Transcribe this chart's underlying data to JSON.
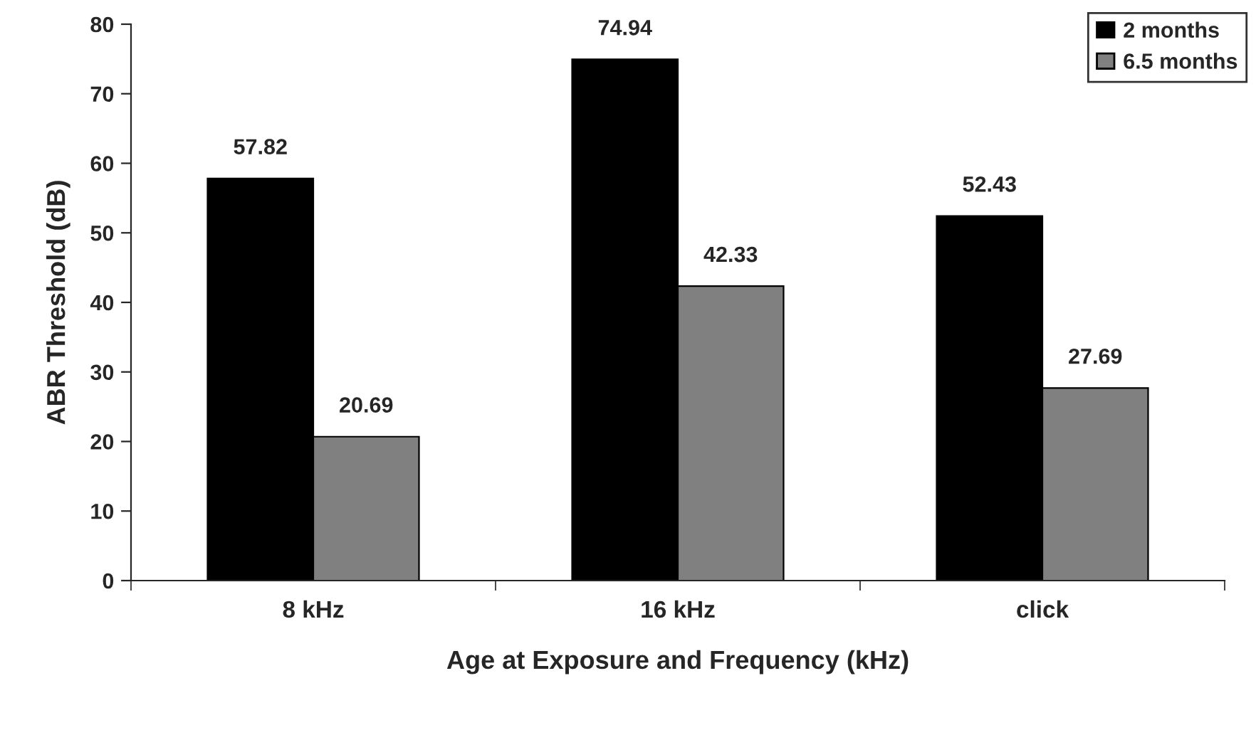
{
  "chart_data": {
    "type": "bar",
    "xlabel": "Age at Exposure and Frequency (kHz)",
    "ylabel": "ABR Threshold (dB)",
    "categories": [
      "8 kHz",
      "16 kHz",
      "click"
    ],
    "series": [
      {
        "name": "2 months",
        "color": "#000000",
        "values": [
          57.82,
          74.94,
          52.43
        ]
      },
      {
        "name": "6.5 months",
        "color": "#808080",
        "values": [
          20.69,
          42.33,
          27.69
        ]
      }
    ],
    "ylim": [
      0,
      80
    ],
    "yticks": [
      0,
      10,
      20,
      30,
      40,
      50,
      60,
      70,
      80
    ],
    "grid": false,
    "legend": "top right",
    "data_labels": true
  }
}
